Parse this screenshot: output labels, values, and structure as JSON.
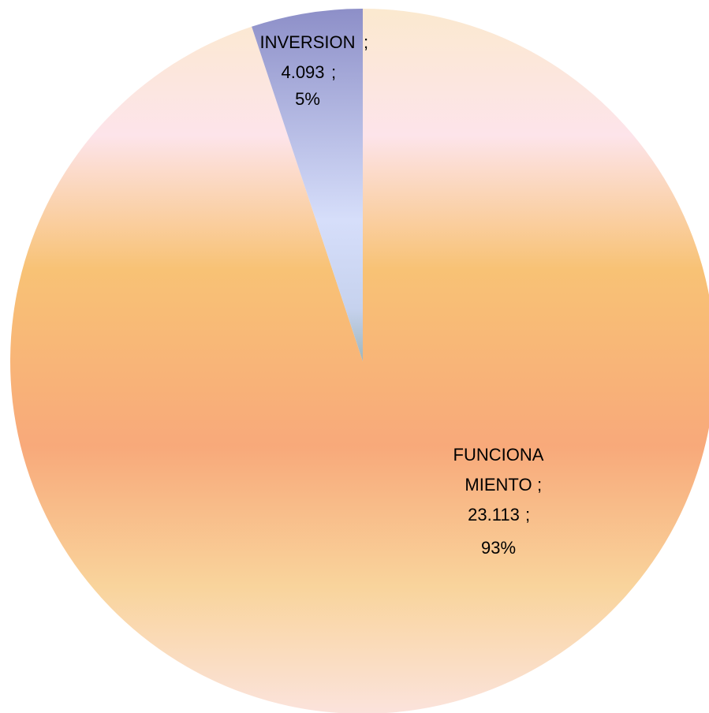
{
  "chart_data": {
    "type": "pie",
    "categories": [
      "FUNCIONAMIENTO",
      "INVERSION"
    ],
    "amounts": [
      23.113,
      4.093
    ],
    "values": [
      93,
      5
    ],
    "value_labels": [
      "93%",
      "5%"
    ],
    "label_separator": ";",
    "colors": [
      "#f8b27a",
      "#b9c2ee"
    ]
  }
}
